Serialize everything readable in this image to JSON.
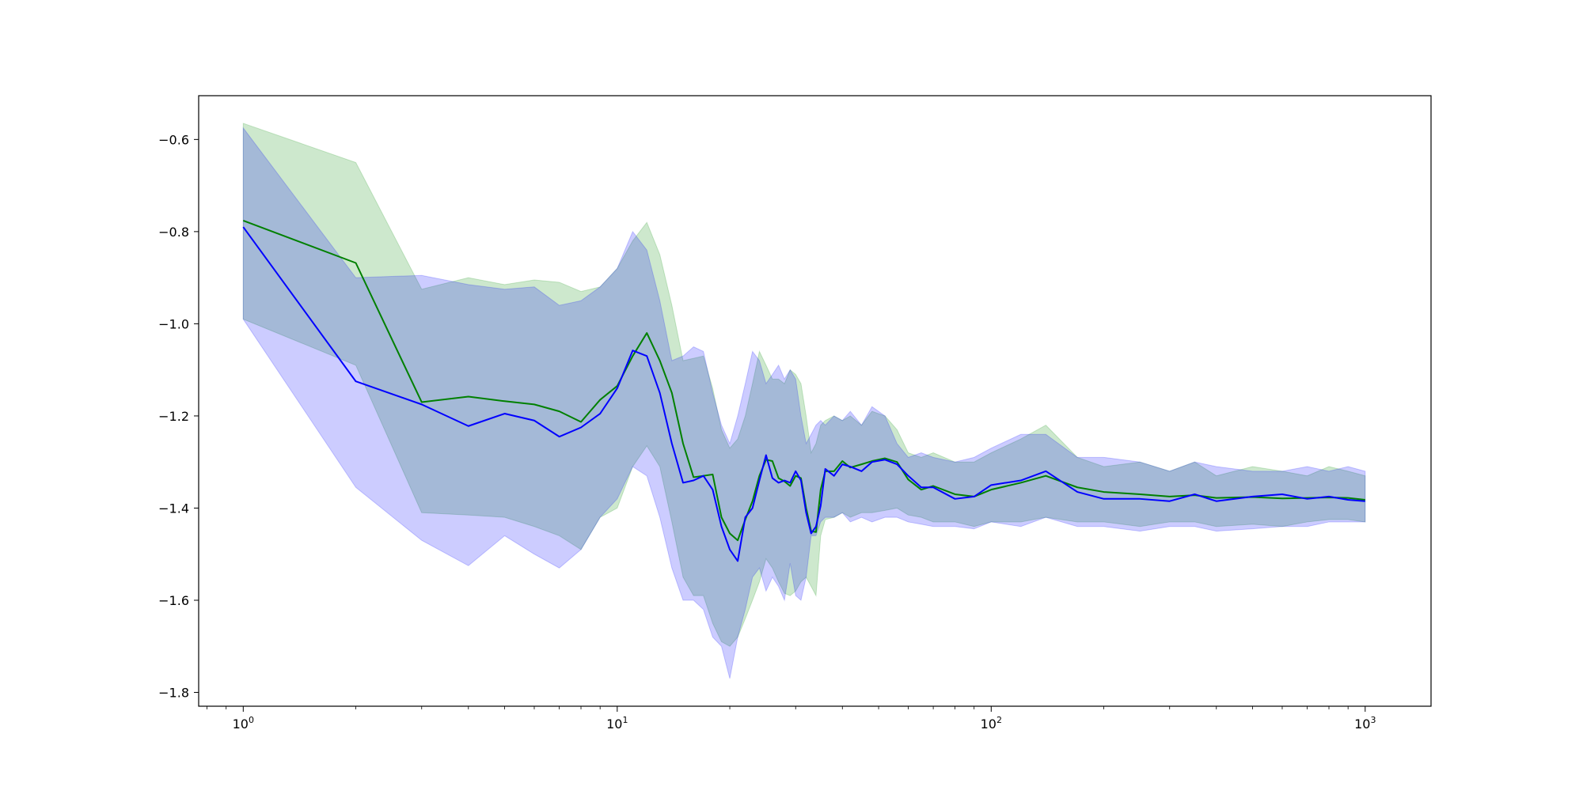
{
  "chart_data": {
    "type": "line",
    "title": "",
    "xlabel": "",
    "ylabel": "",
    "xscale": "log",
    "xlim": [
      0.76,
      1500
    ],
    "ylim": [
      -1.83,
      -0.505
    ],
    "x_ticks": [
      {
        "value": 1,
        "base": "10",
        "exp": "0"
      },
      {
        "value": 10,
        "base": "10",
        "exp": "1"
      },
      {
        "value": 100,
        "base": "10",
        "exp": "2"
      },
      {
        "value": 1000,
        "base": "10",
        "exp": "3"
      }
    ],
    "y_ticks": [
      {
        "value": -0.6,
        "label": "−0.6"
      },
      {
        "value": -0.8,
        "label": "−0.8"
      },
      {
        "value": -1.0,
        "label": "−1.0"
      },
      {
        "value": -1.2,
        "label": "−1.2"
      },
      {
        "value": -1.4,
        "label": "−1.4"
      },
      {
        "value": -1.6,
        "label": "−1.6"
      },
      {
        "value": -1.8,
        "label": "−1.8"
      }
    ],
    "grid": false,
    "legend": "none",
    "series": [
      {
        "color": "#008000",
        "band_color": "#2ca02c",
        "band_opacity": 0.24,
        "x": [
          1,
          2,
          3,
          4,
          5,
          6,
          7,
          8,
          9,
          10,
          11,
          12,
          13,
          14,
          15,
          16,
          17,
          18,
          19,
          20,
          21,
          22,
          23,
          24,
          25,
          26,
          27,
          28,
          29,
          30,
          31,
          32,
          33,
          34,
          35,
          36,
          38,
          40,
          42,
          45,
          48,
          52,
          56,
          60,
          65,
          70,
          80,
          90,
          100,
          120,
          140,
          170,
          200,
          250,
          300,
          350,
          400,
          500,
          600,
          700,
          800,
          900,
          1000
        ],
        "y": [
          -0.776,
          -0.868,
          -1.17,
          -1.158,
          -1.168,
          -1.175,
          -1.19,
          -1.213,
          -1.165,
          -1.135,
          -1.07,
          -1.02,
          -1.08,
          -1.15,
          -1.26,
          -1.333,
          -1.33,
          -1.327,
          -1.42,
          -1.455,
          -1.47,
          -1.425,
          -1.385,
          -1.33,
          -1.295,
          -1.298,
          -1.335,
          -1.342,
          -1.352,
          -1.33,
          -1.335,
          -1.4,
          -1.45,
          -1.452,
          -1.36,
          -1.32,
          -1.32,
          -1.298,
          -1.312,
          -1.305,
          -1.298,
          -1.292,
          -1.3,
          -1.338,
          -1.36,
          -1.352,
          -1.37,
          -1.375,
          -1.36,
          -1.345,
          -1.33,
          -1.355,
          -1.365,
          -1.37,
          -1.375,
          -1.372,
          -1.378,
          -1.376,
          -1.379,
          -1.378,
          -1.377,
          -1.378,
          -1.382
        ],
        "lower": [
          -0.99,
          -1.09,
          -1.41,
          -1.415,
          -1.42,
          -1.44,
          -1.46,
          -1.49,
          -1.42,
          -1.4,
          -1.31,
          -1.265,
          -1.31,
          -1.43,
          -1.55,
          -1.59,
          -1.59,
          -1.65,
          -1.69,
          -1.7,
          -1.68,
          -1.64,
          -1.6,
          -1.56,
          -1.51,
          -1.53,
          -1.56,
          -1.585,
          -1.59,
          -1.58,
          -1.56,
          -1.55,
          -1.57,
          -1.59,
          -1.46,
          -1.425,
          -1.42,
          -1.41,
          -1.42,
          -1.41,
          -1.41,
          -1.405,
          -1.4,
          -1.415,
          -1.42,
          -1.43,
          -1.43,
          -1.44,
          -1.43,
          -1.43,
          -1.42,
          -1.43,
          -1.43,
          -1.44,
          -1.43,
          -1.43,
          -1.44,
          -1.435,
          -1.44,
          -1.43,
          -1.425,
          -1.425,
          -1.43
        ],
        "upper": [
          -0.565,
          -0.65,
          -0.925,
          -0.9,
          -0.915,
          -0.905,
          -0.91,
          -0.93,
          -0.92,
          -0.88,
          -0.82,
          -0.78,
          -0.85,
          -0.96,
          -1.08,
          -1.075,
          -1.07,
          -1.14,
          -1.23,
          -1.27,
          -1.25,
          -1.2,
          -1.13,
          -1.06,
          -1.09,
          -1.12,
          -1.12,
          -1.13,
          -1.1,
          -1.11,
          -1.13,
          -1.2,
          -1.28,
          -1.26,
          -1.22,
          -1.21,
          -1.2,
          -1.21,
          -1.2,
          -1.22,
          -1.19,
          -1.2,
          -1.23,
          -1.28,
          -1.29,
          -1.28,
          -1.3,
          -1.3,
          -1.28,
          -1.25,
          -1.22,
          -1.29,
          -1.31,
          -1.3,
          -1.32,
          -1.3,
          -1.33,
          -1.31,
          -1.32,
          -1.33,
          -1.31,
          -1.32,
          -1.33
        ]
      },
      {
        "color": "#0000ff",
        "band_color": "#0000ff",
        "band_opacity": 0.2,
        "x": [
          1,
          2,
          3,
          4,
          5,
          6,
          7,
          8,
          9,
          10,
          11,
          12,
          13,
          14,
          15,
          16,
          17,
          18,
          19,
          20,
          21,
          22,
          23,
          24,
          25,
          26,
          27,
          28,
          29,
          30,
          31,
          32,
          33,
          34,
          35,
          36,
          38,
          40,
          42,
          45,
          48,
          52,
          56,
          60,
          65,
          70,
          80,
          90,
          100,
          120,
          140,
          170,
          200,
          250,
          300,
          350,
          400,
          500,
          600,
          700,
          800,
          900,
          1000
        ],
        "y": [
          -0.79,
          -1.125,
          -1.175,
          -1.222,
          -1.195,
          -1.21,
          -1.245,
          -1.225,
          -1.195,
          -1.14,
          -1.058,
          -1.07,
          -1.15,
          -1.26,
          -1.345,
          -1.34,
          -1.33,
          -1.36,
          -1.44,
          -1.49,
          -1.515,
          -1.42,
          -1.4,
          -1.34,
          -1.285,
          -1.335,
          -1.345,
          -1.34,
          -1.345,
          -1.32,
          -1.34,
          -1.41,
          -1.455,
          -1.44,
          -1.395,
          -1.315,
          -1.33,
          -1.305,
          -1.31,
          -1.32,
          -1.3,
          -1.295,
          -1.305,
          -1.33,
          -1.355,
          -1.355,
          -1.38,
          -1.375,
          -1.35,
          -1.34,
          -1.32,
          -1.365,
          -1.38,
          -1.38,
          -1.385,
          -1.37,
          -1.385,
          -1.375,
          -1.37,
          -1.38,
          -1.375,
          -1.382,
          -1.385
        ],
        "lower": [
          -0.99,
          -1.355,
          -1.47,
          -1.525,
          -1.46,
          -1.5,
          -1.53,
          -1.49,
          -1.42,
          -1.38,
          -1.31,
          -1.33,
          -1.42,
          -1.53,
          -1.6,
          -1.6,
          -1.62,
          -1.68,
          -1.7,
          -1.77,
          -1.68,
          -1.62,
          -1.55,
          -1.53,
          -1.58,
          -1.55,
          -1.57,
          -1.6,
          -1.52,
          -1.59,
          -1.6,
          -1.55,
          -1.46,
          -1.46,
          -1.43,
          -1.42,
          -1.42,
          -1.41,
          -1.43,
          -1.42,
          -1.43,
          -1.42,
          -1.42,
          -1.43,
          -1.435,
          -1.44,
          -1.44,
          -1.445,
          -1.43,
          -1.44,
          -1.42,
          -1.44,
          -1.44,
          -1.45,
          -1.44,
          -1.44,
          -1.45,
          -1.445,
          -1.44,
          -1.44,
          -1.43,
          -1.43,
          -1.43
        ],
        "upper": [
          -0.575,
          -0.9,
          -0.895,
          -0.915,
          -0.925,
          -0.92,
          -0.96,
          -0.95,
          -0.92,
          -0.88,
          -0.8,
          -0.84,
          -0.95,
          -1.08,
          -1.07,
          -1.05,
          -1.06,
          -1.15,
          -1.22,
          -1.26,
          -1.2,
          -1.13,
          -1.06,
          -1.08,
          -1.13,
          -1.11,
          -1.09,
          -1.12,
          -1.1,
          -1.12,
          -1.2,
          -1.26,
          -1.24,
          -1.22,
          -1.21,
          -1.22,
          -1.2,
          -1.21,
          -1.19,
          -1.22,
          -1.18,
          -1.2,
          -1.26,
          -1.29,
          -1.28,
          -1.29,
          -1.3,
          -1.29,
          -1.27,
          -1.24,
          -1.24,
          -1.29,
          -1.29,
          -1.3,
          -1.32,
          -1.3,
          -1.31,
          -1.32,
          -1.32,
          -1.31,
          -1.32,
          -1.31,
          -1.32
        ]
      }
    ]
  }
}
